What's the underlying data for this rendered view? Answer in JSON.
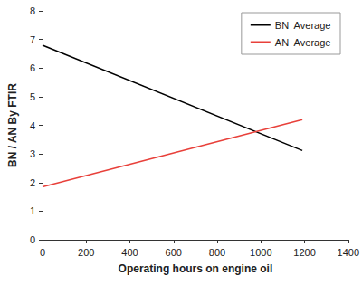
{
  "chart_data": {
    "type": "line",
    "x_label": "Operating hours on engine oil",
    "y_label": "BN / AN By FTIR",
    "x": [
      0,
      1190
    ],
    "series": [
      {
        "name": "BN  Average",
        "color": "#000000",
        "values": [
          6.8,
          3.12
        ]
      },
      {
        "name": "AN  Average",
        "color": "#e8403a",
        "values": [
          1.85,
          4.2
        ]
      }
    ],
    "xlim": [
      0,
      1400
    ],
    "xticks": [
      0,
      200,
      400,
      600,
      800,
      1000,
      1200,
      1400
    ],
    "ylim": [
      0,
      8
    ],
    "yticks": [
      0,
      1,
      2,
      3,
      4,
      5,
      6,
      7,
      8
    ],
    "grid": false,
    "legend": "upper right"
  }
}
